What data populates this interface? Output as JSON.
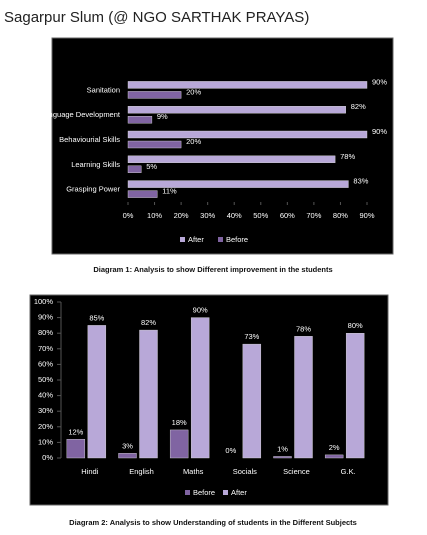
{
  "header": {
    "title": "Sagarpur Slum (@ NGO SARTHAK PRAYAS)"
  },
  "chart_data": [
    {
      "type": "bar",
      "horizontal": true,
      "caption": "Diagram 1: Analysis to show Different improvement in the students",
      "categories": [
        "Sanitation",
        "Language Development",
        "Behaviourial Skills",
        "Learning Skills",
        "Grasping Power"
      ],
      "series": [
        {
          "name": "After",
          "color": "#b8a8d8",
          "values": [
            90,
            82,
            90,
            78,
            83
          ],
          "value_labels": [
            "90%",
            "82%",
            "90%",
            "78%",
            "83%"
          ]
        },
        {
          "name": "Before",
          "color": "#8064a2",
          "values": [
            20,
            9,
            20,
            5,
            11
          ],
          "value_labels": [
            "20%",
            "9%",
            "20%",
            "5%",
            "11%"
          ]
        }
      ],
      "xlim": [
        0,
        90
      ],
      "xticks": [
        {
          "value": 0,
          "label": "0%"
        },
        {
          "value": 10,
          "label": "10%"
        },
        {
          "value": 20,
          "label": "20%"
        },
        {
          "value": 30,
          "label": "30%"
        },
        {
          "value": 40,
          "label": "40%"
        },
        {
          "value": 50,
          "label": "50%"
        },
        {
          "value": 60,
          "label": "60%"
        },
        {
          "value": 70,
          "label": "70%"
        },
        {
          "value": 80,
          "label": "80%"
        },
        {
          "value": 90,
          "label": "90%"
        }
      ],
      "grid": false,
      "legend": "bottom"
    },
    {
      "type": "bar",
      "horizontal": false,
      "caption": "Diagram 2: Analysis to show Understanding of students in the Different Subjects",
      "categories": [
        "Hindi",
        "English",
        "Maths",
        "Socials",
        "Science",
        "G.K."
      ],
      "series": [
        {
          "name": "Before",
          "color": "#8064a2",
          "values": [
            12,
            3,
            18,
            0,
            1,
            2
          ],
          "value_labels": [
            "12%",
            "3%",
            "18%",
            "0%",
            "1%",
            "2%"
          ]
        },
        {
          "name": "After",
          "color": "#b8a8d8",
          "values": [
            85,
            82,
            90,
            73,
            78,
            80
          ],
          "value_labels": [
            "85%",
            "82%",
            "90%",
            "73%",
            "78%",
            "80%"
          ]
        }
      ],
      "ylim": [
        0,
        100
      ],
      "yticks": [
        {
          "value": 0,
          "label": "0%"
        },
        {
          "value": 10,
          "label": "10%"
        },
        {
          "value": 20,
          "label": "20%"
        },
        {
          "value": 30,
          "label": "30%"
        },
        {
          "value": 40,
          "label": "40%"
        },
        {
          "value": 50,
          "label": "50%"
        },
        {
          "value": 60,
          "label": "60%"
        },
        {
          "value": 70,
          "label": "70%"
        },
        {
          "value": 80,
          "label": "80%"
        },
        {
          "value": 90,
          "label": "90%"
        },
        {
          "value": 100,
          "label": "100%"
        }
      ],
      "grid": false,
      "legend": "bottom"
    }
  ]
}
